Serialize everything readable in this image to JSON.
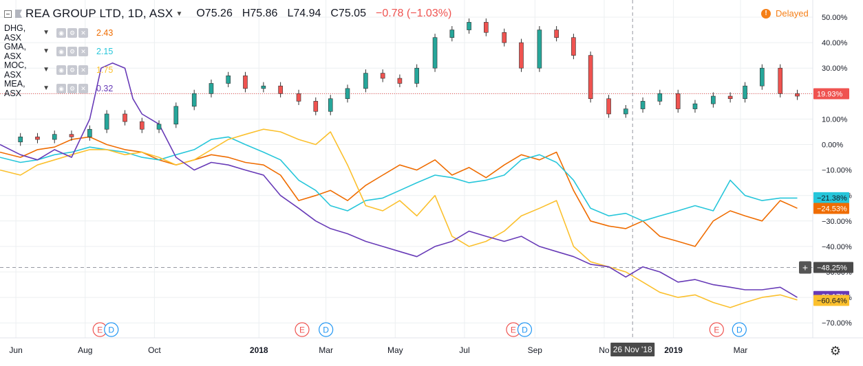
{
  "header": {
    "title": "REA GROUP LTD, 1D, ASX",
    "o": "O75.26",
    "h": "H75.86",
    "l": "L74.94",
    "c": "C75.05",
    "change": "−0.78 (−1.03%)",
    "delayed": "Delayed"
  },
  "legend": [
    {
      "symbol": "DHG, ASX",
      "value": "2.43",
      "color": "#ef6c00"
    },
    {
      "symbol": "GMA, ASX",
      "value": "2.15",
      "color": "#26c6da"
    },
    {
      "symbol": "MOC, ASX",
      "value": "1.75",
      "color": "#fbc02d"
    },
    {
      "symbol": "MEA, ASX",
      "value": "0.32",
      "color": "#673ab7"
    }
  ],
  "axis_labels": {
    "x": [
      "Jun",
      "Aug",
      "Oct",
      "2018",
      "Mar",
      "May",
      "Jul",
      "Sep",
      "No",
      "2019",
      "Mar"
    ],
    "y": [
      "50.00%",
      "40.00%",
      "30.00%",
      "20.00%",
      "10.00%",
      "0.00%",
      "−10.00%",
      "−20.00%",
      "−30.00%",
      "−40.00%",
      "−50.00%",
      "−60.00%",
      "−70.00%"
    ],
    "crosshair_date": "26 Nov '18",
    "crosshair_value": "−48.25%"
  },
  "price_tags": [
    {
      "text": "19.93%",
      "value": 19.93,
      "color": "#ef5350"
    },
    {
      "text": "−21.38%",
      "value": -21.38,
      "color": "#26c6da"
    },
    {
      "text": "−24.53%",
      "value": -24.53,
      "color": "#ef6c00"
    },
    {
      "text": "−60.17%",
      "value": -60.17,
      "color": "#673ab7"
    },
    {
      "text": "−60.64%",
      "value": -60.64,
      "color": "#fbc02d"
    }
  ],
  "events": [
    {
      "date": "2017-08-14",
      "type": "E"
    },
    {
      "date": "2017-08-24",
      "type": "D"
    },
    {
      "date": "2018-02-08",
      "type": "E"
    },
    {
      "date": "2018-03-01",
      "type": "D"
    },
    {
      "date": "2018-08-13",
      "type": "E"
    },
    {
      "date": "2018-08-23",
      "type": "D"
    },
    {
      "date": "2019-02-08",
      "type": "E"
    },
    {
      "date": "2019-02-28",
      "type": "D"
    }
  ],
  "colors": {
    "candle_up": "#26a69a",
    "candle_down": "#ef5350",
    "candle_wick": "#2e2e2e",
    "grid": "#eceff1",
    "axis_text": "#131722",
    "crosshair": "#9598a1",
    "event_e": "#ef5350",
    "event_d": "#2196f3"
  },
  "chart_data": {
    "type": "line",
    "ylim": [
      -76,
      55
    ],
    "x_range": [
      "2017-05-18",
      "2019-04-30"
    ],
    "grid": true,
    "yscale": "linear",
    "series": [
      {
        "name": "REA GROUP LTD",
        "kind": "candlestick",
        "color": "#2e2e2e",
        "x": [
          "2017-05-20",
          "2017-06-05",
          "2017-06-20",
          "2017-07-05",
          "2017-07-20",
          "2017-08-05",
          "2017-08-20",
          "2017-09-05",
          "2017-09-20",
          "2017-10-05",
          "2017-10-20",
          "2017-11-05",
          "2017-11-20",
          "2017-12-05",
          "2017-12-20",
          "2018-01-05",
          "2018-01-20",
          "2018-02-05",
          "2018-02-20",
          "2018-03-05",
          "2018-03-20",
          "2018-04-05",
          "2018-04-20",
          "2018-05-05",
          "2018-05-20",
          "2018-06-05",
          "2018-06-20",
          "2018-07-05",
          "2018-07-20",
          "2018-08-05",
          "2018-08-20",
          "2018-09-05",
          "2018-09-20",
          "2018-10-05",
          "2018-10-20",
          "2018-11-05",
          "2018-11-20",
          "2018-12-05",
          "2018-12-20",
          "2019-01-05",
          "2019-01-20",
          "2019-02-05",
          "2019-02-20",
          "2019-03-05",
          "2019-03-20",
          "2019-04-05",
          "2019-04-20"
        ],
        "y": [
          1,
          3,
          2,
          4,
          3,
          6,
          12,
          9,
          6,
          8,
          15,
          20,
          24,
          27,
          22,
          23,
          20,
          17,
          13,
          18,
          22,
          28,
          26,
          24,
          30,
          42,
          45,
          48,
          44,
          40,
          30,
          45,
          42,
          35,
          18,
          12,
          14,
          17,
          20,
          14,
          16,
          19,
          18,
          23,
          30,
          20,
          19
        ]
      },
      {
        "name": "DHG, ASX",
        "color": "#ef6c00",
        "x": [
          "2017-05-18",
          "2017-06-05",
          "2017-06-20",
          "2017-07-05",
          "2017-07-20",
          "2017-08-05",
          "2017-08-20",
          "2017-09-05",
          "2017-09-20",
          "2017-10-05",
          "2017-10-20",
          "2017-11-05",
          "2017-11-20",
          "2017-12-05",
          "2017-12-20",
          "2018-01-05",
          "2018-01-20",
          "2018-02-05",
          "2018-02-20",
          "2018-03-05",
          "2018-03-20",
          "2018-04-05",
          "2018-04-20",
          "2018-05-05",
          "2018-05-20",
          "2018-06-05",
          "2018-06-20",
          "2018-07-05",
          "2018-07-20",
          "2018-08-05",
          "2018-08-20",
          "2018-09-05",
          "2018-09-20",
          "2018-10-05",
          "2018-10-20",
          "2018-11-05",
          "2018-11-20",
          "2018-12-05",
          "2018-12-20",
          "2019-01-05",
          "2019-01-20",
          "2019-02-05",
          "2019-02-20",
          "2019-03-05",
          "2019-03-20",
          "2019-04-05",
          "2019-04-20"
        ],
        "y": [
          -3,
          -5,
          -2,
          -1,
          2,
          3,
          0,
          -2,
          -3,
          -6,
          -8,
          -6,
          -4,
          -5,
          -7,
          -8,
          -12,
          -22,
          -20,
          -18,
          -22,
          -16,
          -12,
          -8,
          -10,
          -6,
          -12,
          -9,
          -13,
          -8,
          -4,
          -6,
          -3,
          -18,
          -30,
          -32,
          -33,
          -30,
          -36,
          -38,
          -40,
          -30,
          -26,
          -28,
          -30,
          -22,
          -25
        ]
      },
      {
        "name": "GMA, ASX",
        "color": "#26c6da",
        "x": [
          "2017-05-18",
          "2017-06-05",
          "2017-06-20",
          "2017-07-05",
          "2017-07-20",
          "2017-08-05",
          "2017-08-20",
          "2017-09-05",
          "2017-09-20",
          "2017-10-05",
          "2017-10-20",
          "2017-11-05",
          "2017-11-20",
          "2017-12-05",
          "2017-12-20",
          "2018-01-05",
          "2018-01-20",
          "2018-02-05",
          "2018-02-20",
          "2018-03-05",
          "2018-03-20",
          "2018-04-05",
          "2018-04-20",
          "2018-05-05",
          "2018-05-20",
          "2018-06-05",
          "2018-06-20",
          "2018-07-05",
          "2018-07-20",
          "2018-08-05",
          "2018-08-20",
          "2018-09-05",
          "2018-09-20",
          "2018-10-05",
          "2018-10-20",
          "2018-11-05",
          "2018-11-20",
          "2018-12-05",
          "2018-12-20",
          "2019-01-05",
          "2019-01-20",
          "2019-02-05",
          "2019-02-20",
          "2019-03-05",
          "2019-03-20",
          "2019-04-05",
          "2019-04-20"
        ],
        "y": [
          -5,
          -7,
          -6,
          -4,
          -3,
          -1,
          -2,
          -3,
          -5,
          -6,
          -4,
          -2,
          2,
          3,
          0,
          -3,
          -6,
          -14,
          -18,
          -24,
          -26,
          -22,
          -21,
          -18,
          -15,
          -12,
          -13,
          -15,
          -14,
          -12,
          -6,
          -4,
          -7,
          -14,
          -25,
          -28,
          -27,
          -30,
          -28,
          -26,
          -24,
          -26,
          -14,
          -20,
          -22,
          -21,
          -21
        ]
      },
      {
        "name": "MOC, ASX",
        "color": "#fbc02d",
        "x": [
          "2017-05-18",
          "2017-06-05",
          "2017-06-20",
          "2017-07-05",
          "2017-07-20",
          "2017-08-05",
          "2017-08-20",
          "2017-09-05",
          "2017-09-20",
          "2017-10-05",
          "2017-10-20",
          "2017-11-05",
          "2017-11-20",
          "2017-12-05",
          "2017-12-20",
          "2018-01-05",
          "2018-01-20",
          "2018-02-05",
          "2018-02-20",
          "2018-03-05",
          "2018-03-20",
          "2018-04-05",
          "2018-04-20",
          "2018-05-05",
          "2018-05-20",
          "2018-06-05",
          "2018-06-20",
          "2018-07-05",
          "2018-07-20",
          "2018-08-05",
          "2018-08-20",
          "2018-09-05",
          "2018-09-20",
          "2018-10-05",
          "2018-10-20",
          "2018-11-05",
          "2018-11-20",
          "2018-12-05",
          "2018-12-20",
          "2019-01-05",
          "2019-01-20",
          "2019-02-05",
          "2019-02-20",
          "2019-03-05",
          "2019-03-20",
          "2019-04-05",
          "2019-04-20"
        ],
        "y": [
          -10,
          -12,
          -8,
          -6,
          -4,
          -2,
          -2,
          -4,
          -3,
          -5,
          -8,
          -6,
          -2,
          2,
          4,
          6,
          5,
          2,
          0,
          5,
          -8,
          -24,
          -26,
          -22,
          -28,
          -20,
          -36,
          -40,
          -38,
          -34,
          -28,
          -25,
          -22,
          -40,
          -46,
          -48,
          -50,
          -54,
          -58,
          -60,
          -59,
          -62,
          -64,
          -62,
          -60,
          -59,
          -61
        ]
      },
      {
        "name": "MEA, ASX",
        "color": "#673ab7",
        "x": [
          "2017-05-18",
          "2017-06-05",
          "2017-06-20",
          "2017-07-05",
          "2017-07-20",
          "2017-08-05",
          "2017-08-15",
          "2017-08-25",
          "2017-09-05",
          "2017-09-12",
          "2017-09-20",
          "2017-10-05",
          "2017-10-20",
          "2017-11-05",
          "2017-11-20",
          "2017-12-05",
          "2017-12-20",
          "2018-01-05",
          "2018-01-20",
          "2018-02-05",
          "2018-02-20",
          "2018-03-05",
          "2018-03-20",
          "2018-04-05",
          "2018-04-20",
          "2018-05-05",
          "2018-05-20",
          "2018-06-05",
          "2018-06-20",
          "2018-07-05",
          "2018-07-20",
          "2018-08-05",
          "2018-08-20",
          "2018-09-05",
          "2018-09-20",
          "2018-10-05",
          "2018-10-20",
          "2018-11-05",
          "2018-11-20",
          "2018-12-05",
          "2018-12-20",
          "2019-01-05",
          "2019-01-20",
          "2019-02-05",
          "2019-02-20",
          "2019-03-05",
          "2019-03-20",
          "2019-04-05",
          "2019-04-20"
        ],
        "y": [
          0,
          -4,
          -6,
          -2,
          -5,
          10,
          30,
          32,
          30,
          18,
          12,
          8,
          -5,
          -10,
          -7,
          -8,
          -10,
          -12,
          -20,
          -25,
          -30,
          -33,
          -35,
          -38,
          -40,
          -42,
          -44,
          -40,
          -38,
          -34,
          -36,
          -38,
          -36,
          -40,
          -42,
          -44,
          -47,
          -48,
          -52,
          -48,
          -50,
          -54,
          -53,
          -55,
          -56,
          -57,
          -57,
          -56,
          -60
        ]
      }
    ]
  }
}
